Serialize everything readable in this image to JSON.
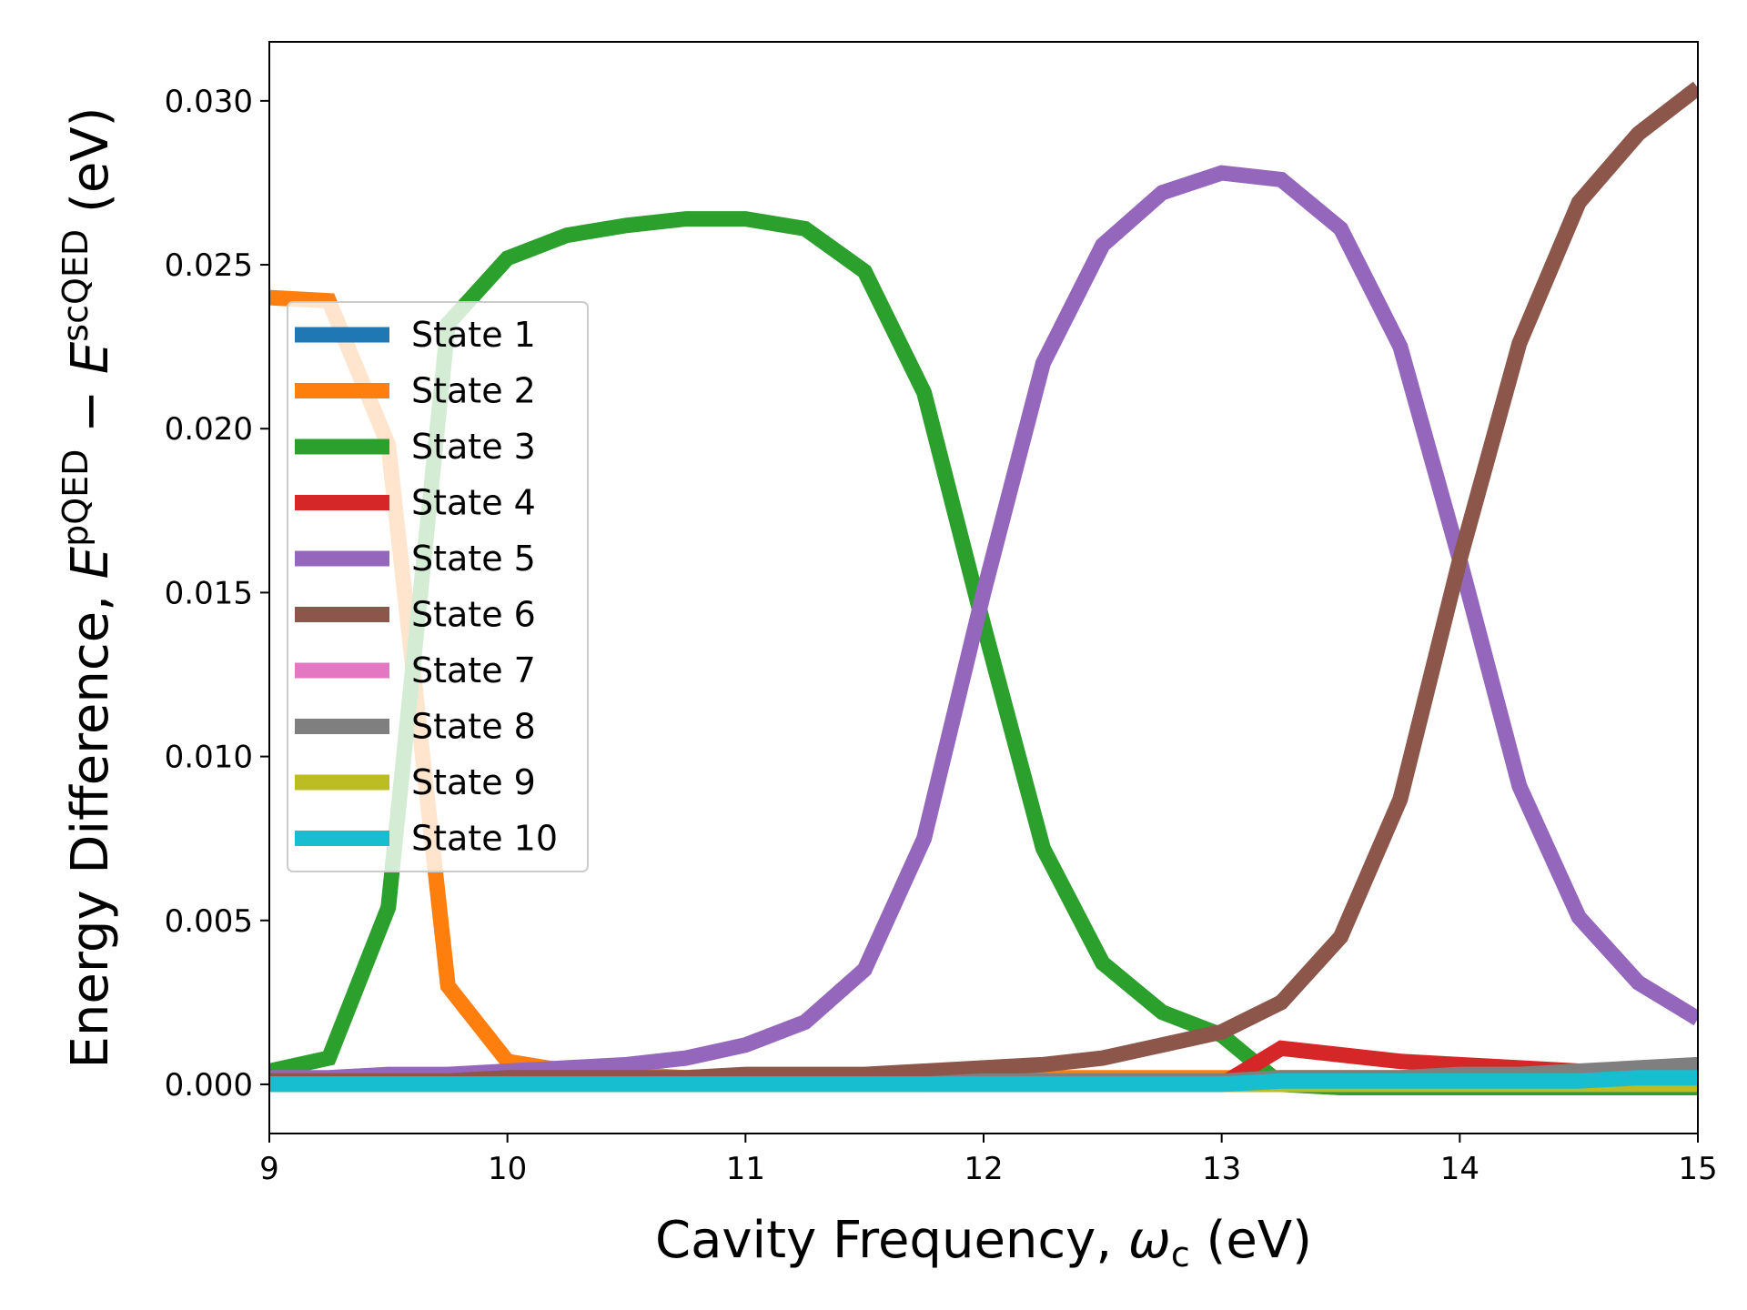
{
  "chart_data": {
    "type": "line",
    "title": "",
    "xlabel": {
      "prefix": "Cavity Frequency, ",
      "symbol": "ω",
      "sub": "c",
      "suffix": " (eV)"
    },
    "ylabel": {
      "prefix": "Energy Difference, ",
      "sym1": "E",
      "sup1": "pQED",
      "minus": " − ",
      "sym2": "E",
      "sup2": "scQED",
      "suffix": " (eV)"
    },
    "xlim": [
      9,
      15
    ],
    "ylim": [
      -0.0015,
      0.0318
    ],
    "xticks": [
      "9",
      "10",
      "11",
      "12",
      "13",
      "14",
      "15"
    ],
    "yticks": [
      "0.000",
      "0.005",
      "0.010",
      "0.015",
      "0.020",
      "0.025",
      "0.030"
    ],
    "grid": false,
    "legend_position": "upper-left",
    "x": [
      9.0,
      9.25,
      9.5,
      9.75,
      10.0,
      10.25,
      10.5,
      10.75,
      11.0,
      11.25,
      11.5,
      11.75,
      12.0,
      12.25,
      12.5,
      12.75,
      13.0,
      13.25,
      13.5,
      13.75,
      14.0,
      14.25,
      14.5,
      14.75,
      15.0
    ],
    "series": [
      {
        "name": "State 1",
        "color": "#1f77b4",
        "values": [
          0,
          0,
          0,
          0,
          0,
          0,
          0,
          0,
          0,
          0,
          0,
          0,
          0,
          0,
          0,
          0,
          0,
          0,
          0,
          0,
          0,
          0,
          0,
          0,
          0
        ]
      },
      {
        "name": "State 2",
        "color": "#ff7f0e",
        "values": [
          0.024,
          0.0239,
          0.0195,
          0.003,
          0.0007,
          0.0004,
          0.0003,
          0.0002,
          0.0002,
          0.0002,
          0.0002,
          0.0002,
          0.0002,
          0.0002,
          0.0002,
          0.0002,
          0.0002,
          0.0002,
          0.0002,
          0.0002,
          0.0002,
          0.0002,
          0.0002,
          0.0002,
          0.0002
        ]
      },
      {
        "name": "State 3",
        "color": "#2ca02c",
        "values": [
          0.0004,
          0.0008,
          0.0054,
          0.0232,
          0.0252,
          0.0259,
          0.0262,
          0.0264,
          0.0264,
          0.0261,
          0.0248,
          0.0211,
          0.014,
          0.0072,
          0.0037,
          0.0022,
          0.0015,
          0.0,
          -0.0001,
          -0.0001,
          -0.0001,
          -0.0001,
          -0.0001,
          -0.0001,
          -0.0001
        ]
      },
      {
        "name": "State 4",
        "color": "#d62728",
        "values": [
          0,
          0,
          0,
          0,
          0,
          0,
          0,
          0,
          0,
          0,
          0,
          0,
          0,
          0,
          0,
          0,
          0,
          0.0011,
          0.0009,
          0.0007,
          0.0006,
          0.0005,
          0.0004,
          0.0003,
          0.0003
        ]
      },
      {
        "name": "State 5",
        "color": "#9467bd",
        "values": [
          0.0002,
          0.0002,
          0.0003,
          0.0003,
          0.0004,
          0.0005,
          0.0006,
          0.0008,
          0.0012,
          0.0019,
          0.0035,
          0.0075,
          0.015,
          0.022,
          0.0256,
          0.0272,
          0.0278,
          0.0276,
          0.0261,
          0.0225,
          0.016,
          0.0091,
          0.0051,
          0.0031,
          0.002
        ]
      },
      {
        "name": "State 6",
        "color": "#8c564b",
        "values": [
          0.0001,
          0.0001,
          0.0001,
          0.0001,
          0.0002,
          0.0002,
          0.0002,
          0.0002,
          0.0003,
          0.0003,
          0.0003,
          0.0004,
          0.0005,
          0.0006,
          0.0008,
          0.0012,
          0.0016,
          0.0025,
          0.0045,
          0.0087,
          0.016,
          0.0226,
          0.0269,
          0.029,
          0.0304
        ]
      },
      {
        "name": "State 7",
        "color": "#e377c2",
        "values": [
          0,
          0,
          0,
          0,
          0,
          0,
          0,
          0,
          0,
          0,
          0,
          0,
          0,
          0,
          0,
          0,
          0,
          0,
          0,
          0,
          0,
          0,
          0,
          0,
          0
        ]
      },
      {
        "name": "State 8",
        "color": "#7f7f7f",
        "values": [
          0,
          0,
          0,
          0,
          0,
          0,
          0,
          0,
          0,
          0,
          0,
          0,
          0.0001,
          0.0001,
          0.0001,
          0.0001,
          0.0001,
          0.0002,
          0.0002,
          0.0002,
          0.0003,
          0.0003,
          0.0004,
          0.0005,
          0.0006
        ]
      },
      {
        "name": "State 9",
        "color": "#bcbd22",
        "values": [
          0,
          0,
          0,
          0,
          0,
          0,
          0,
          0,
          0,
          0,
          0,
          0,
          0,
          0,
          0,
          0,
          0,
          0,
          0,
          0,
          0,
          0,
          0,
          0,
          0
        ]
      },
      {
        "name": "State 10",
        "color": "#17becf",
        "values": [
          0,
          0,
          0,
          0,
          0,
          0,
          0,
          0,
          0,
          0,
          0,
          0,
          0,
          0,
          0,
          0,
          0,
          0.0001,
          0.0001,
          0.0001,
          0.0001,
          0.0001,
          0.0001,
          0.0002,
          0.0002
        ]
      }
    ]
  }
}
